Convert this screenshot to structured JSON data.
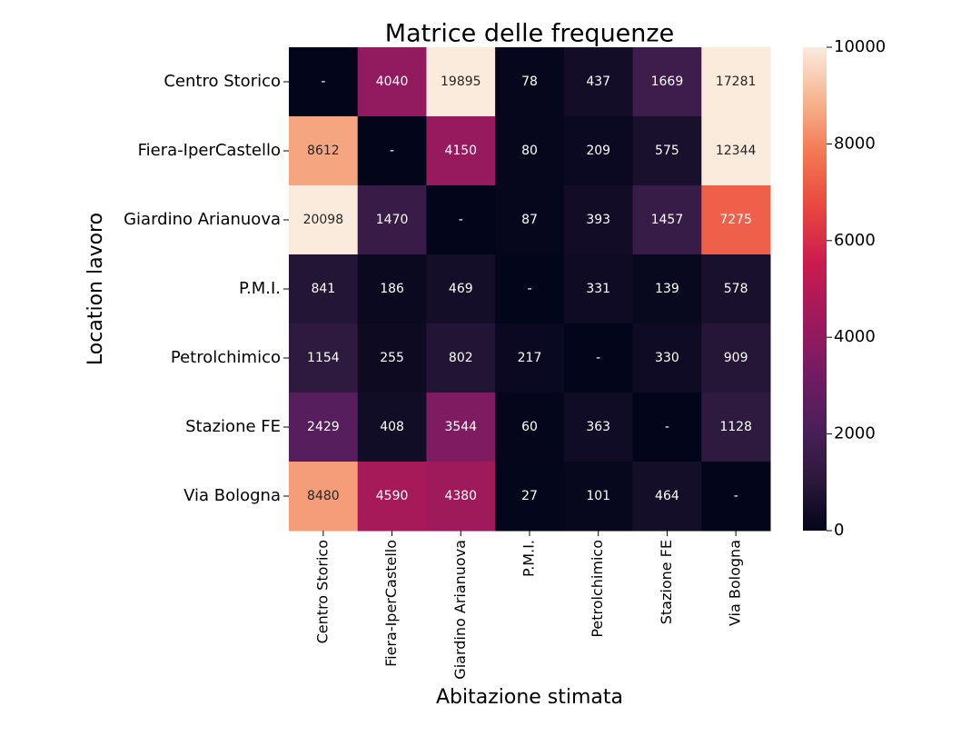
{
  "chart_data": {
    "type": "heatmap",
    "title": "Matrice delle frequenze",
    "x_label": "Abitazione stimata",
    "y_label": "Location lavoro",
    "x_categories": [
      "Centro Storico",
      "Fiera-IperCastello",
      "Giardino Arianuova",
      "P.M.I.",
      "Petrolchimico",
      "Stazione FE",
      "Via Bologna"
    ],
    "y_categories": [
      "Centro Storico",
      "Fiera-IperCastello",
      "Giardino Arianuova",
      "P.M.I.",
      "Petrolchimico",
      "Stazione FE",
      "Via Bologna"
    ],
    "values": [
      [
        null,
        4040,
        19895,
        78,
        437,
        1669,
        17281
      ],
      [
        8612,
        null,
        4150,
        80,
        209,
        575,
        12344
      ],
      [
        20098,
        1470,
        null,
        87,
        393,
        1457,
        7275
      ],
      [
        841,
        186,
        469,
        null,
        331,
        139,
        578
      ],
      [
        1154,
        255,
        802,
        217,
        null,
        330,
        909
      ],
      [
        2429,
        408,
        3544,
        60,
        363,
        null,
        1128
      ],
      [
        8480,
        4590,
        4380,
        27,
        101,
        464,
        null
      ]
    ],
    "missing_label": "-",
    "colormap": [
      "#03051a",
      "#2d1a3e",
      "#4e1f5b",
      "#771b63",
      "#a11a5b",
      "#cb1b4f",
      "#e8463f",
      "#f37651",
      "#f6b48e",
      "#faebdd"
    ],
    "clim": [
      0,
      10000
    ],
    "cticks": [
      0,
      2000,
      4000,
      6000,
      8000,
      10000
    ]
  }
}
